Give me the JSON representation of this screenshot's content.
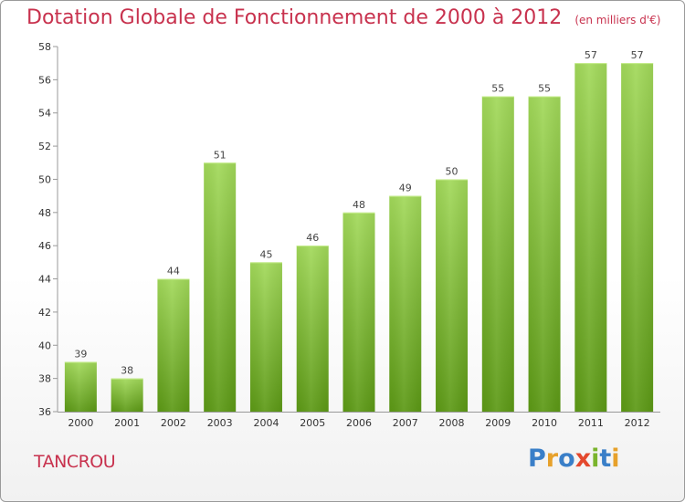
{
  "header": {
    "title": "Dotation Globale de Fonctionnement de 2000 à 2012",
    "subtitle": "(en milliers d'€)"
  },
  "footer": {
    "town": "TANCROU",
    "logo": "Proxiti"
  },
  "colors": {
    "accent": "#c8324e",
    "bar_top": "#9fd653",
    "bar_bottom": "#5e9b16"
  },
  "chart_data": {
    "type": "bar",
    "title": "Dotation Globale de Fonctionnement de 2000 à 2012",
    "subtitle": "(en milliers d'€)",
    "xlabel": "",
    "ylabel": "",
    "categories": [
      "2000",
      "2001",
      "2002",
      "2003",
      "2004",
      "2005",
      "2006",
      "2007",
      "2008",
      "2009",
      "2010",
      "2011",
      "2012"
    ],
    "values": [
      39,
      38,
      44,
      51,
      45,
      46,
      48,
      49,
      50,
      55,
      55,
      57,
      57
    ],
    "ylim": [
      36,
      58
    ],
    "yticks": [
      36,
      38,
      40,
      42,
      44,
      46,
      48,
      50,
      52,
      54,
      56,
      58
    ],
    "grid": false,
    "data_labels": true
  }
}
